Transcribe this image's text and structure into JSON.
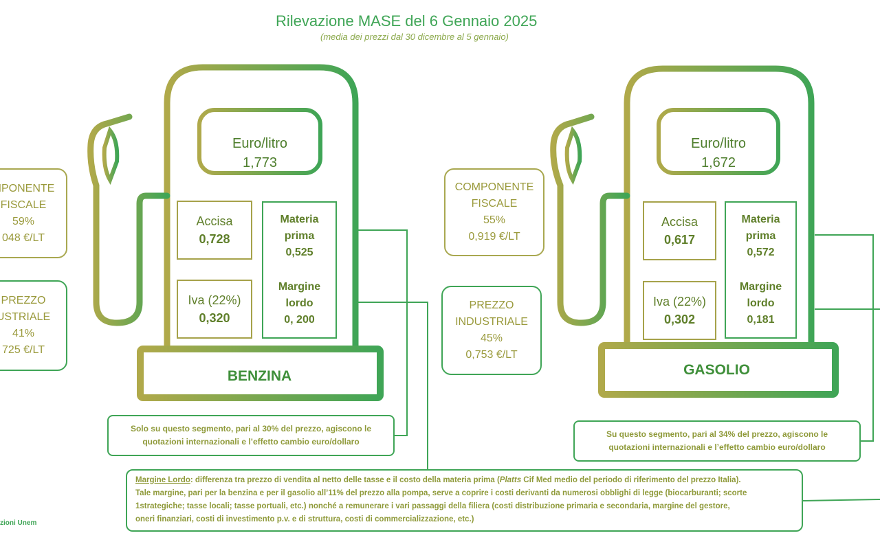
{
  "title": "Rilevazione MASE del 6 Gennaio 2025",
  "subtitle": "(media dei prezzi dal 30 dicembre al 5 gennaio)",
  "benzina": {
    "fuel_label": "BENZINA",
    "euro_label": "Euro/litro",
    "euro_value": "1,773",
    "accisa_label": "Accisa",
    "accisa_value": "0,728",
    "iva_label": "Iva (22%)",
    "iva_value": "0,320",
    "materia_label_1": "Materia",
    "materia_label_2": "prima",
    "materia_value": "0,525",
    "margine_label_1": "Margine",
    "margine_label_2": "lordo",
    "margine_value": "0, 200",
    "fiscale": {
      "line1": "MPONENTE",
      "line2": "FISCALE",
      "line3": "59%",
      "line4": "048 €/LT"
    },
    "industriale": {
      "line1": "PREZZO",
      "line2": "USTRIALE",
      "line3": "41%",
      "line4": "725 €/LT"
    },
    "note": [
      "Solo su questo segmento, pari al 30% del prezzo, agiscono le",
      "quotazioni internazionali e l’effetto cambio euro/dollaro"
    ]
  },
  "gasolio": {
    "fuel_label": "GASOLIO",
    "euro_label": "Euro/litro",
    "euro_value": "1,672",
    "accisa_label": "Accisa",
    "accisa_value": "0,617",
    "iva_label": "Iva (22%)",
    "iva_value": "0,302",
    "materia_label_1": "Materia",
    "materia_label_2": "prima",
    "materia_value": "0,572",
    "margine_label_1": "Margine",
    "margine_label_2": "lordo",
    "margine_value": "0,181",
    "fiscale": {
      "line1": "COMPONENTE",
      "line2": "FISCALE",
      "line3": "55%",
      "line4": "0,919 €/LT"
    },
    "industriale": {
      "line1": "PREZZO",
      "line2": "INDUSTRIALE",
      "line3": "45%",
      "line4": "0,753 €/LT"
    },
    "note": [
      "Su questo segmento, pari al 34% del prezzo, agiscono le",
      "quotazioni internazionali e l’effetto cambio euro/dollaro"
    ]
  },
  "definition": {
    "term": "Margine Lordo",
    "line1": ": differenza tra prezzo di vendita al netto delle tasse e il costo della materia prima (",
    "line1_italic": "Platts",
    "line1_end": " Cif Med medio del periodo di riferimento del prezzo Italia).",
    "line2": "Tale margine, pari per la benzina e per il gasolio all’11% del prezzo alla pompa, serve a coprire i costi derivanti da numerosi obblighi di legge (biocarburanti; scorte",
    "line3": "1strategiche; tasse locali; tasse portuali, etc.) nonché a remunerare i vari passaggi della filiera (costi distribuzione primaria e secondaria, margine del gestore,",
    "line4": "oneri finanziari, costi di investimento p.v. e di struttura, costi di commercializzazione, etc.)"
  },
  "source": "zioni Unem",
  "colors": {
    "green": "#3fa556",
    "olive": "#a9a850",
    "text_olive": "#9a9a3c",
    "text_dark": "#5f7f2a"
  }
}
